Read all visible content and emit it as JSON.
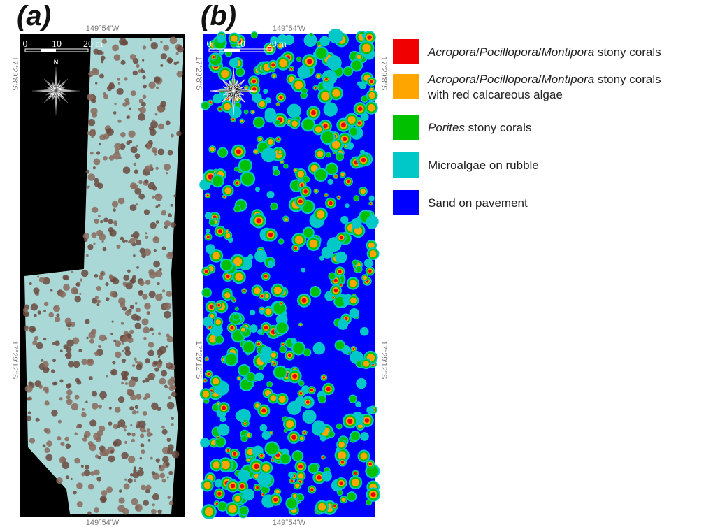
{
  "panels": [
    {
      "label": "(a)",
      "top": "149°54'W",
      "bottom": "149°54'W",
      "left_labels": [
        "17°29'8''S",
        "17°29'12''S"
      ],
      "right_labels": [],
      "scale_labels": [
        "0",
        "10",
        "20",
        "m"
      ],
      "north": "N"
    },
    {
      "label": "(b)",
      "top": "149°54'W",
      "bottom": "149°54'W",
      "left_labels": [
        "17°29'8''S",
        "17°29'12''S"
      ],
      "right_labels": [
        "17°29'8''S",
        "17°29'12''S"
      ],
      "scale_labels": [
        "0",
        "10",
        "20",
        "m"
      ]
    }
  ],
  "legend": [
    {
      "color": "#f00000",
      "lines": [
        [
          {
            "text": "Acropora",
            "italic": true
          },
          {
            "text": "/",
            "italic": false
          },
          {
            "text": "Pocillopora",
            "italic": true
          },
          {
            "text": "/",
            "italic": false
          },
          {
            "text": "Montipora",
            "italic": true
          },
          {
            "text": " stony corals",
            "italic": false
          }
        ]
      ]
    },
    {
      "color": "#ffa500",
      "lines": [
        [
          {
            "text": "Acropora",
            "italic": true
          },
          {
            "text": "/",
            "italic": false
          },
          {
            "text": "Pocillopora",
            "italic": true
          },
          {
            "text": "/",
            "italic": false
          },
          {
            "text": "Montipora",
            "italic": true
          },
          {
            "text": " stony corals",
            "italic": false
          }
        ],
        [
          {
            "text": "with red calcareous algae",
            "italic": false
          }
        ]
      ]
    },
    {
      "color": "#00c000",
      "lines": [
        [
          {
            "text": "Porites",
            "italic": true
          },
          {
            "text": " stony corals",
            "italic": false
          }
        ]
      ]
    },
    {
      "color": "#00c8c8",
      "lines": [
        [
          {
            "text": "Microalgae on rubble",
            "italic": false
          }
        ]
      ]
    },
    {
      "color": "#0000ff",
      "lines": [
        [
          {
            "text": "Sand on pavement",
            "italic": false
          }
        ]
      ]
    }
  ]
}
